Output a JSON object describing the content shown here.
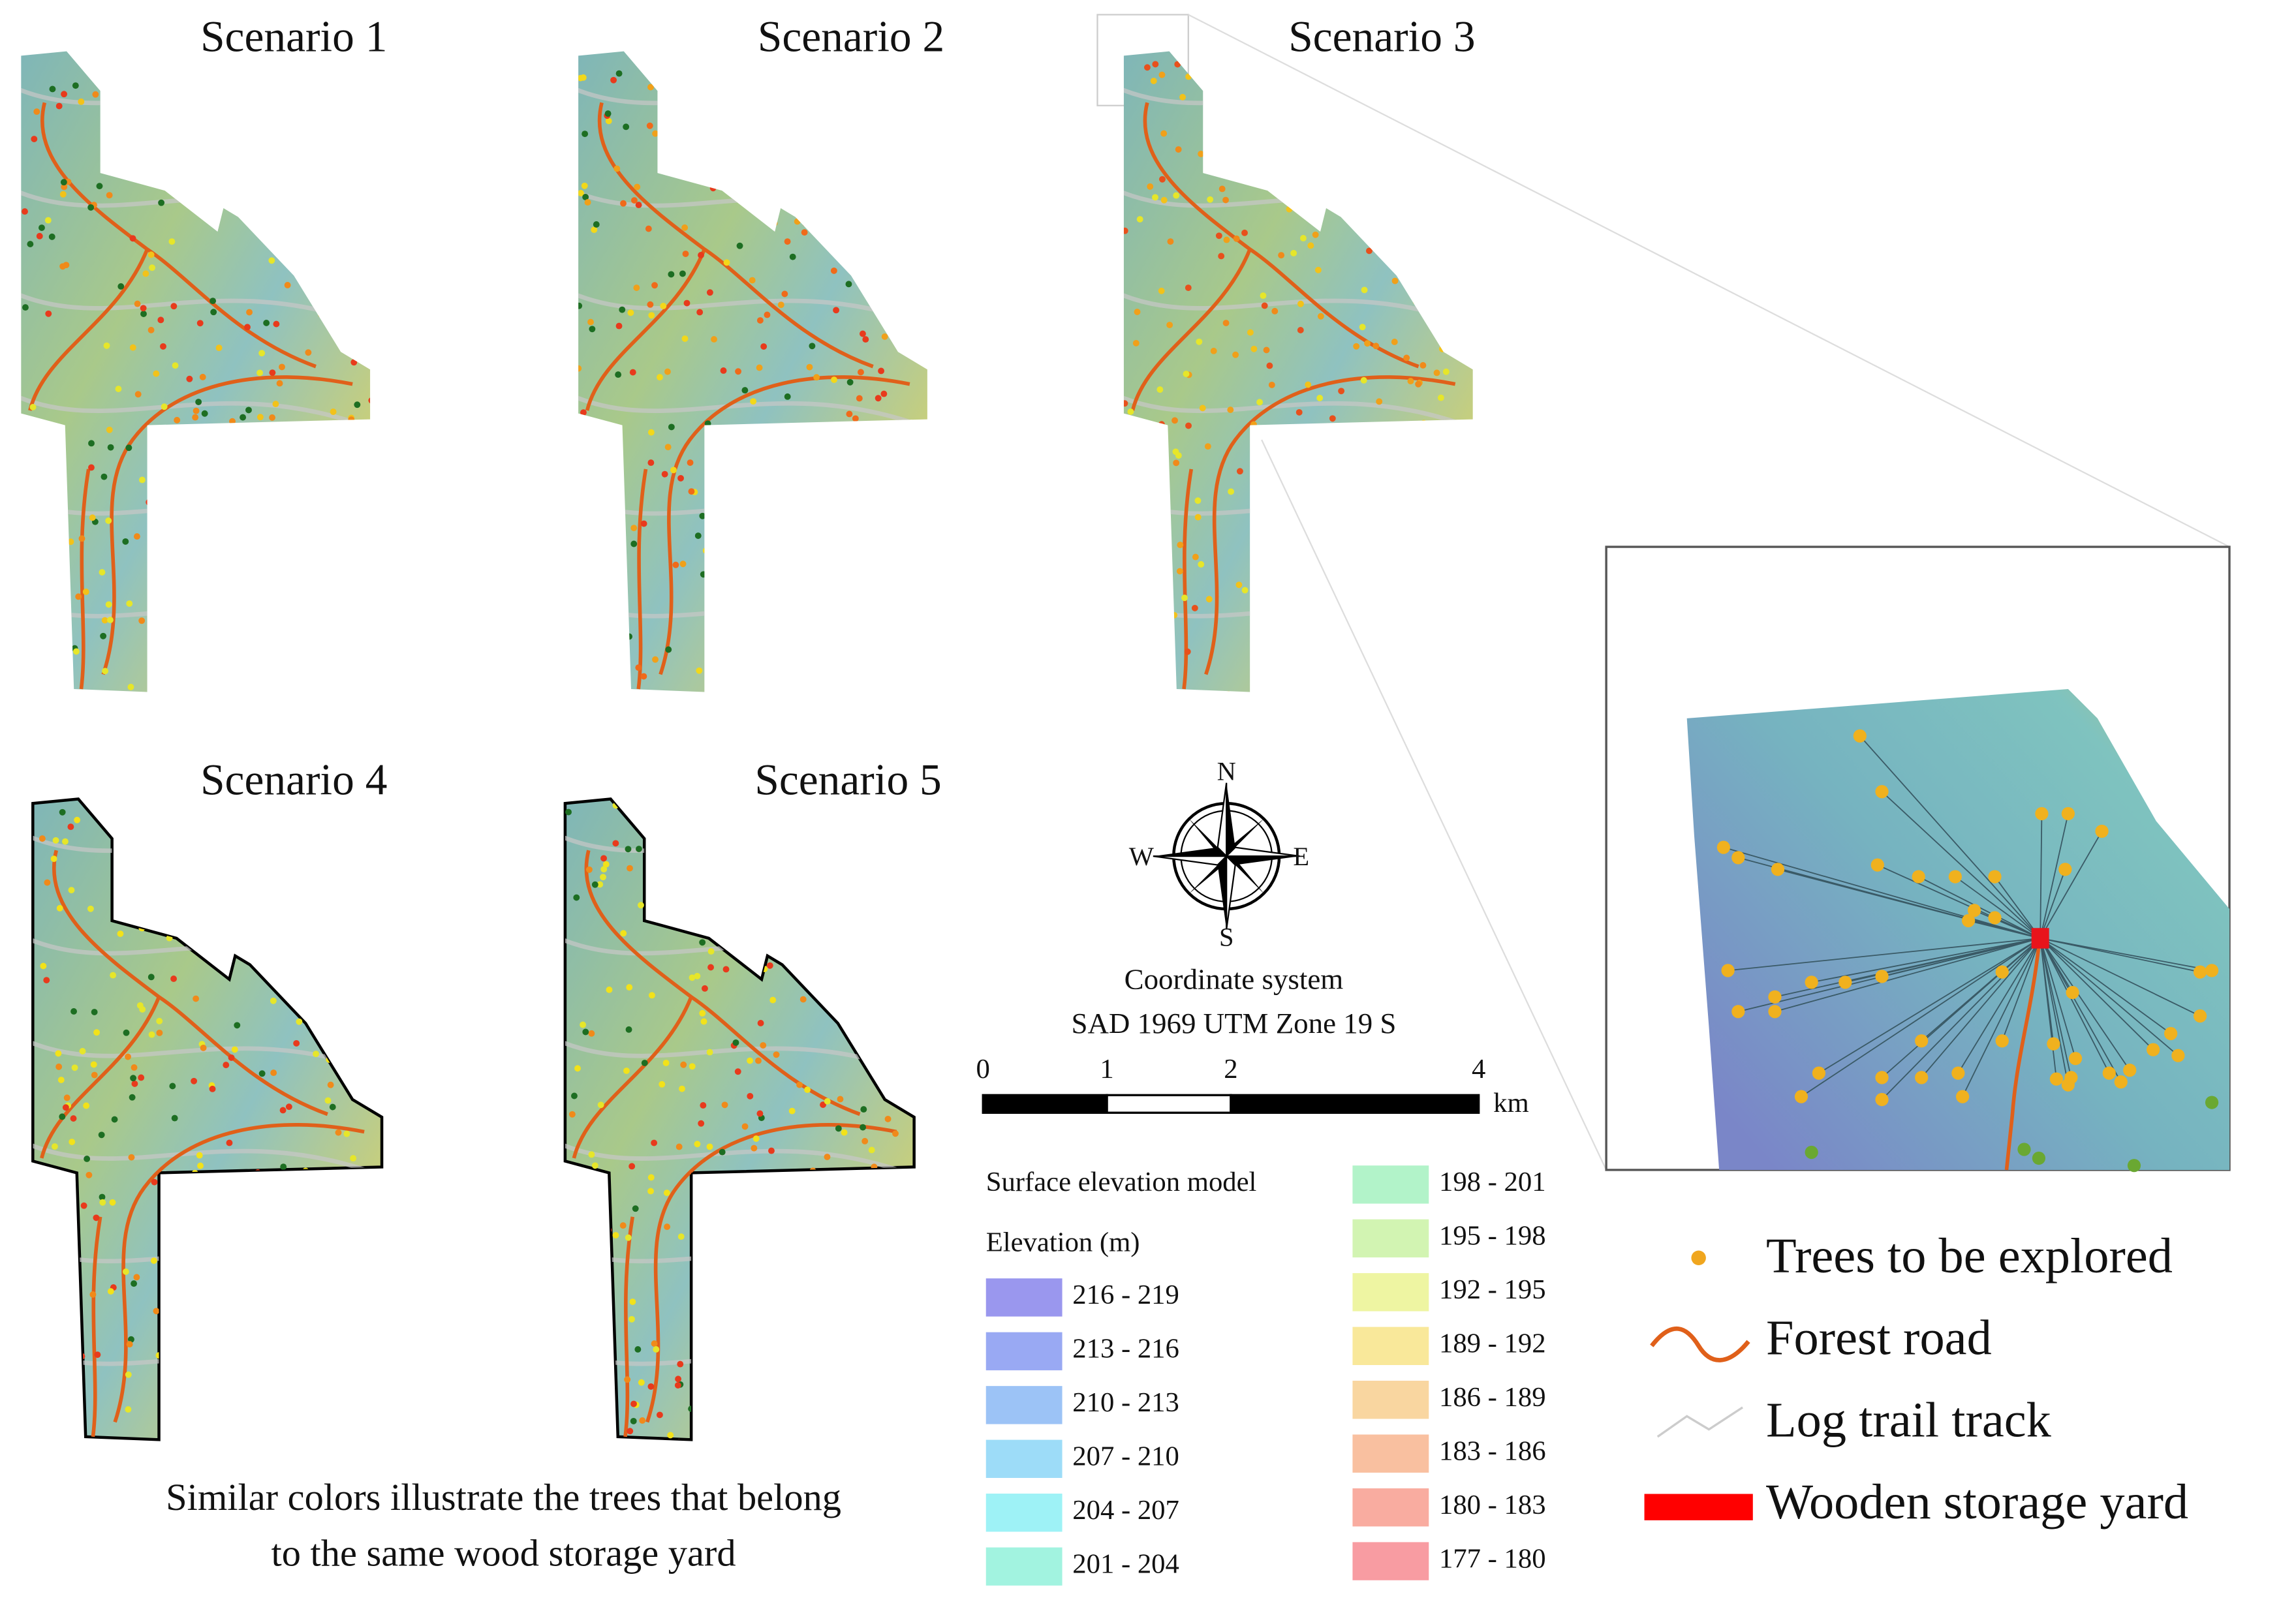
{
  "scenarios": [
    "Scenario 1",
    "Scenario 2",
    "Scenario 3",
    "Scenario 4",
    "Scenario 5"
  ],
  "compass": {
    "north": "N",
    "south": "S",
    "east": "E",
    "west": "W"
  },
  "coordinate_system": {
    "title": "Coordinate system",
    "name": "SAD 1969 UTM Zone 19 S"
  },
  "scale_bar": {
    "ticks": [
      0,
      1,
      2,
      4
    ],
    "unit": "km"
  },
  "elevation_legend": {
    "title": "Surface elevation model",
    "subtitle": "Elevation (m)",
    "classes": [
      {
        "label": "216 - 219",
        "color": "#9a97ee"
      },
      {
        "label": "213 - 216",
        "color": "#99a9f3"
      },
      {
        "label": "210 - 213",
        "color": "#9cc3f6"
      },
      {
        "label": "207 - 210",
        "color": "#9ddcf8"
      },
      {
        "label": "204 - 207",
        "color": "#9ef2f6"
      },
      {
        "label": "201 - 204",
        "color": "#a2f3e0"
      },
      {
        "label": "198 - 201",
        "color": "#b2f3c9"
      },
      {
        "label": "195 - 198",
        "color": "#d2f4b2"
      },
      {
        "label": "192 - 195",
        "color": "#eef5a2"
      },
      {
        "label": "189 - 192",
        "color": "#f9e89a"
      },
      {
        "label": "186 - 189",
        "color": "#f9d6a0"
      },
      {
        "label": "183 - 186",
        "color": "#f9c0a0"
      },
      {
        "label": "180 - 183",
        "color": "#f9aca0"
      },
      {
        "label": "177 - 180",
        "color": "#f89ca2"
      }
    ]
  },
  "inset_legend": [
    "Trees to be explored",
    "Forest road",
    "Log trail track",
    "Wooden storage yard"
  ],
  "caption": [
    "Similar colors illustrate the trees that belong",
    "to the same wood storage yard"
  ]
}
